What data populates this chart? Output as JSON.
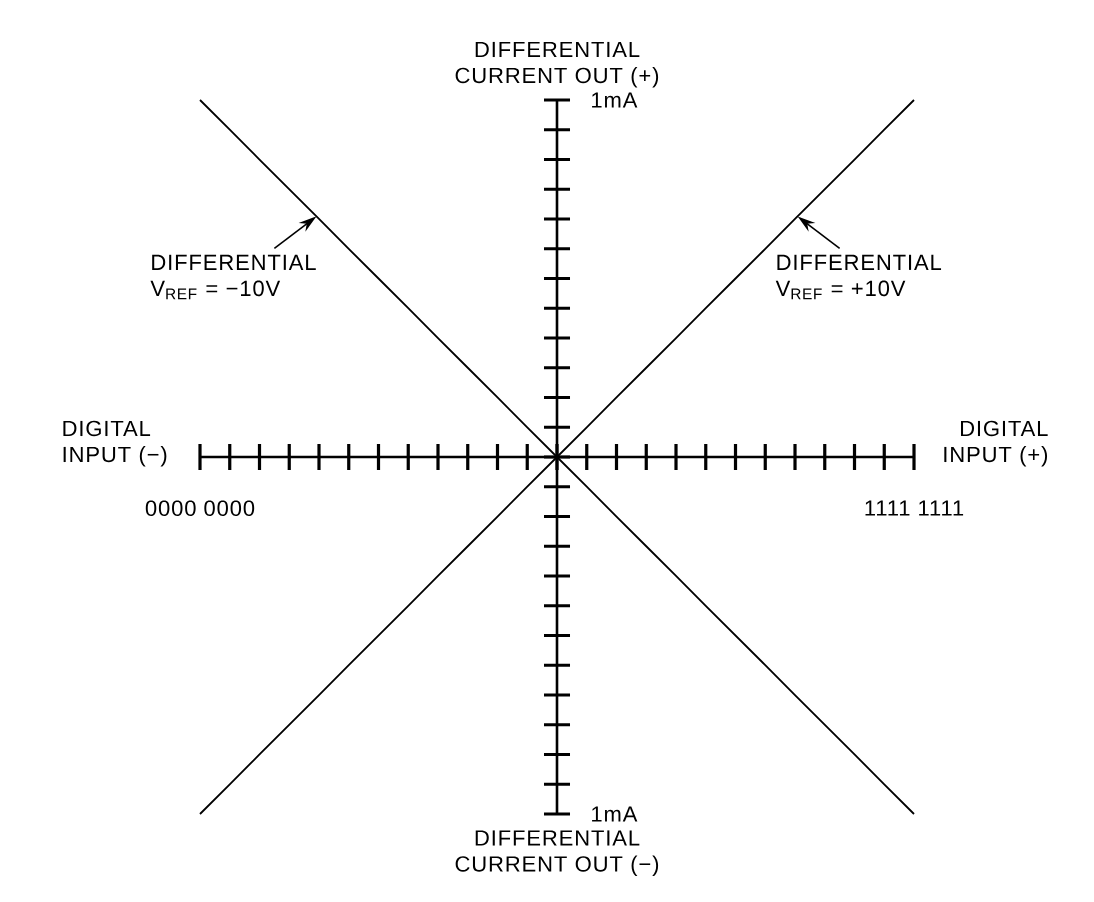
{
  "chart_data": {
    "type": "line",
    "annotations": [
      "DIFFERENTIAL CURRENT OUT (+)",
      "DIFFERENTIAL CURRENT OUT (−)",
      "DIGITAL INPUT (−)",
      "DIGITAL INPUT (+)"
    ],
    "categories": [
      "0000 0000",
      null,
      null,
      null,
      null,
      null,
      null,
      null,
      null,
      null,
      null,
      null,
      null,
      null,
      null,
      null,
      null,
      null,
      null,
      null,
      null,
      null,
      null,
      null,
      "1111 1111"
    ],
    "series": [
      {
        "name": "DIFFERENTIAL V$_{REF}$ = −10V",
        "color": "#000000",
        "values": [
          1,
          0.917,
          0.833,
          0.75,
          0.667,
          0.583,
          0.5,
          0.417,
          0.333,
          0.25,
          0.167,
          0.083,
          0,
          -0.083,
          -0.167,
          -0.25,
          -0.333,
          -0.417,
          -0.5,
          -0.583,
          -0.667,
          -0.75,
          -0.833,
          -0.917,
          -1
        ]
      },
      {
        "name": "DIFFERENTIAL V$_{REF}$ = +10V",
        "color": "#000000",
        "values": [
          -1,
          -0.917,
          -0.833,
          -0.75,
          -0.667,
          -0.583,
          -0.5,
          -0.417,
          -0.333,
          -0.25,
          -0.167,
          -0.083,
          0,
          0.083,
          0.167,
          0.25,
          0.333,
          0.417,
          0.5,
          0.583,
          0.667,
          0.75,
          0.833,
          0.917,
          1
        ]
      }
    ],
    "ylim": [
      -1,
      1
    ],
    "yticks": [
      {
        "value": -1,
        "label": "1mA"
      },
      {
        "value": 1,
        "label": "1mA"
      }
    ],
    "legend": "top"
  }
}
